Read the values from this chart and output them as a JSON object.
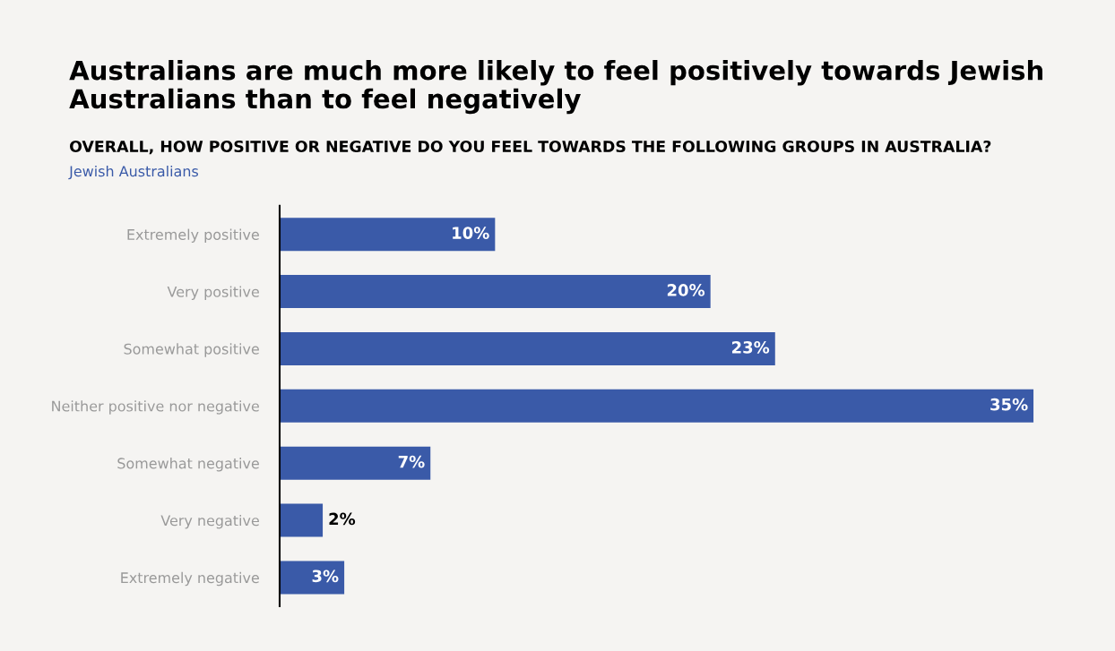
{
  "chart_data": {
    "type": "bar",
    "orientation": "horizontal",
    "title": "Australians are much more likely to feel positively towards Jewish Australians than to feel negatively",
    "subtitle": "OVERALL, HOW POSITIVE OR NEGATIVE DO YOU FEEL TOWARDS THE FOLLOWING GROUPS IN AUSTRALIA?",
    "categories": [
      "Extremely positive",
      "Very positive",
      "Somewhat positive",
      "Neither positive nor negative",
      "Somewhat negative",
      "Very negative",
      "Extremely negative"
    ],
    "series": [
      {
        "name": "Jewish Australians",
        "color": "#3a5aa8",
        "values": [
          10,
          20,
          23,
          35,
          7,
          2,
          3
        ],
        "value_labels": [
          "10%",
          "20%",
          "23%",
          "35%",
          "7%",
          "2%",
          "3%"
        ]
      }
    ],
    "xlim": [
      0,
      35
    ],
    "tick_labels": "y",
    "grid": false,
    "legend": false
  }
}
